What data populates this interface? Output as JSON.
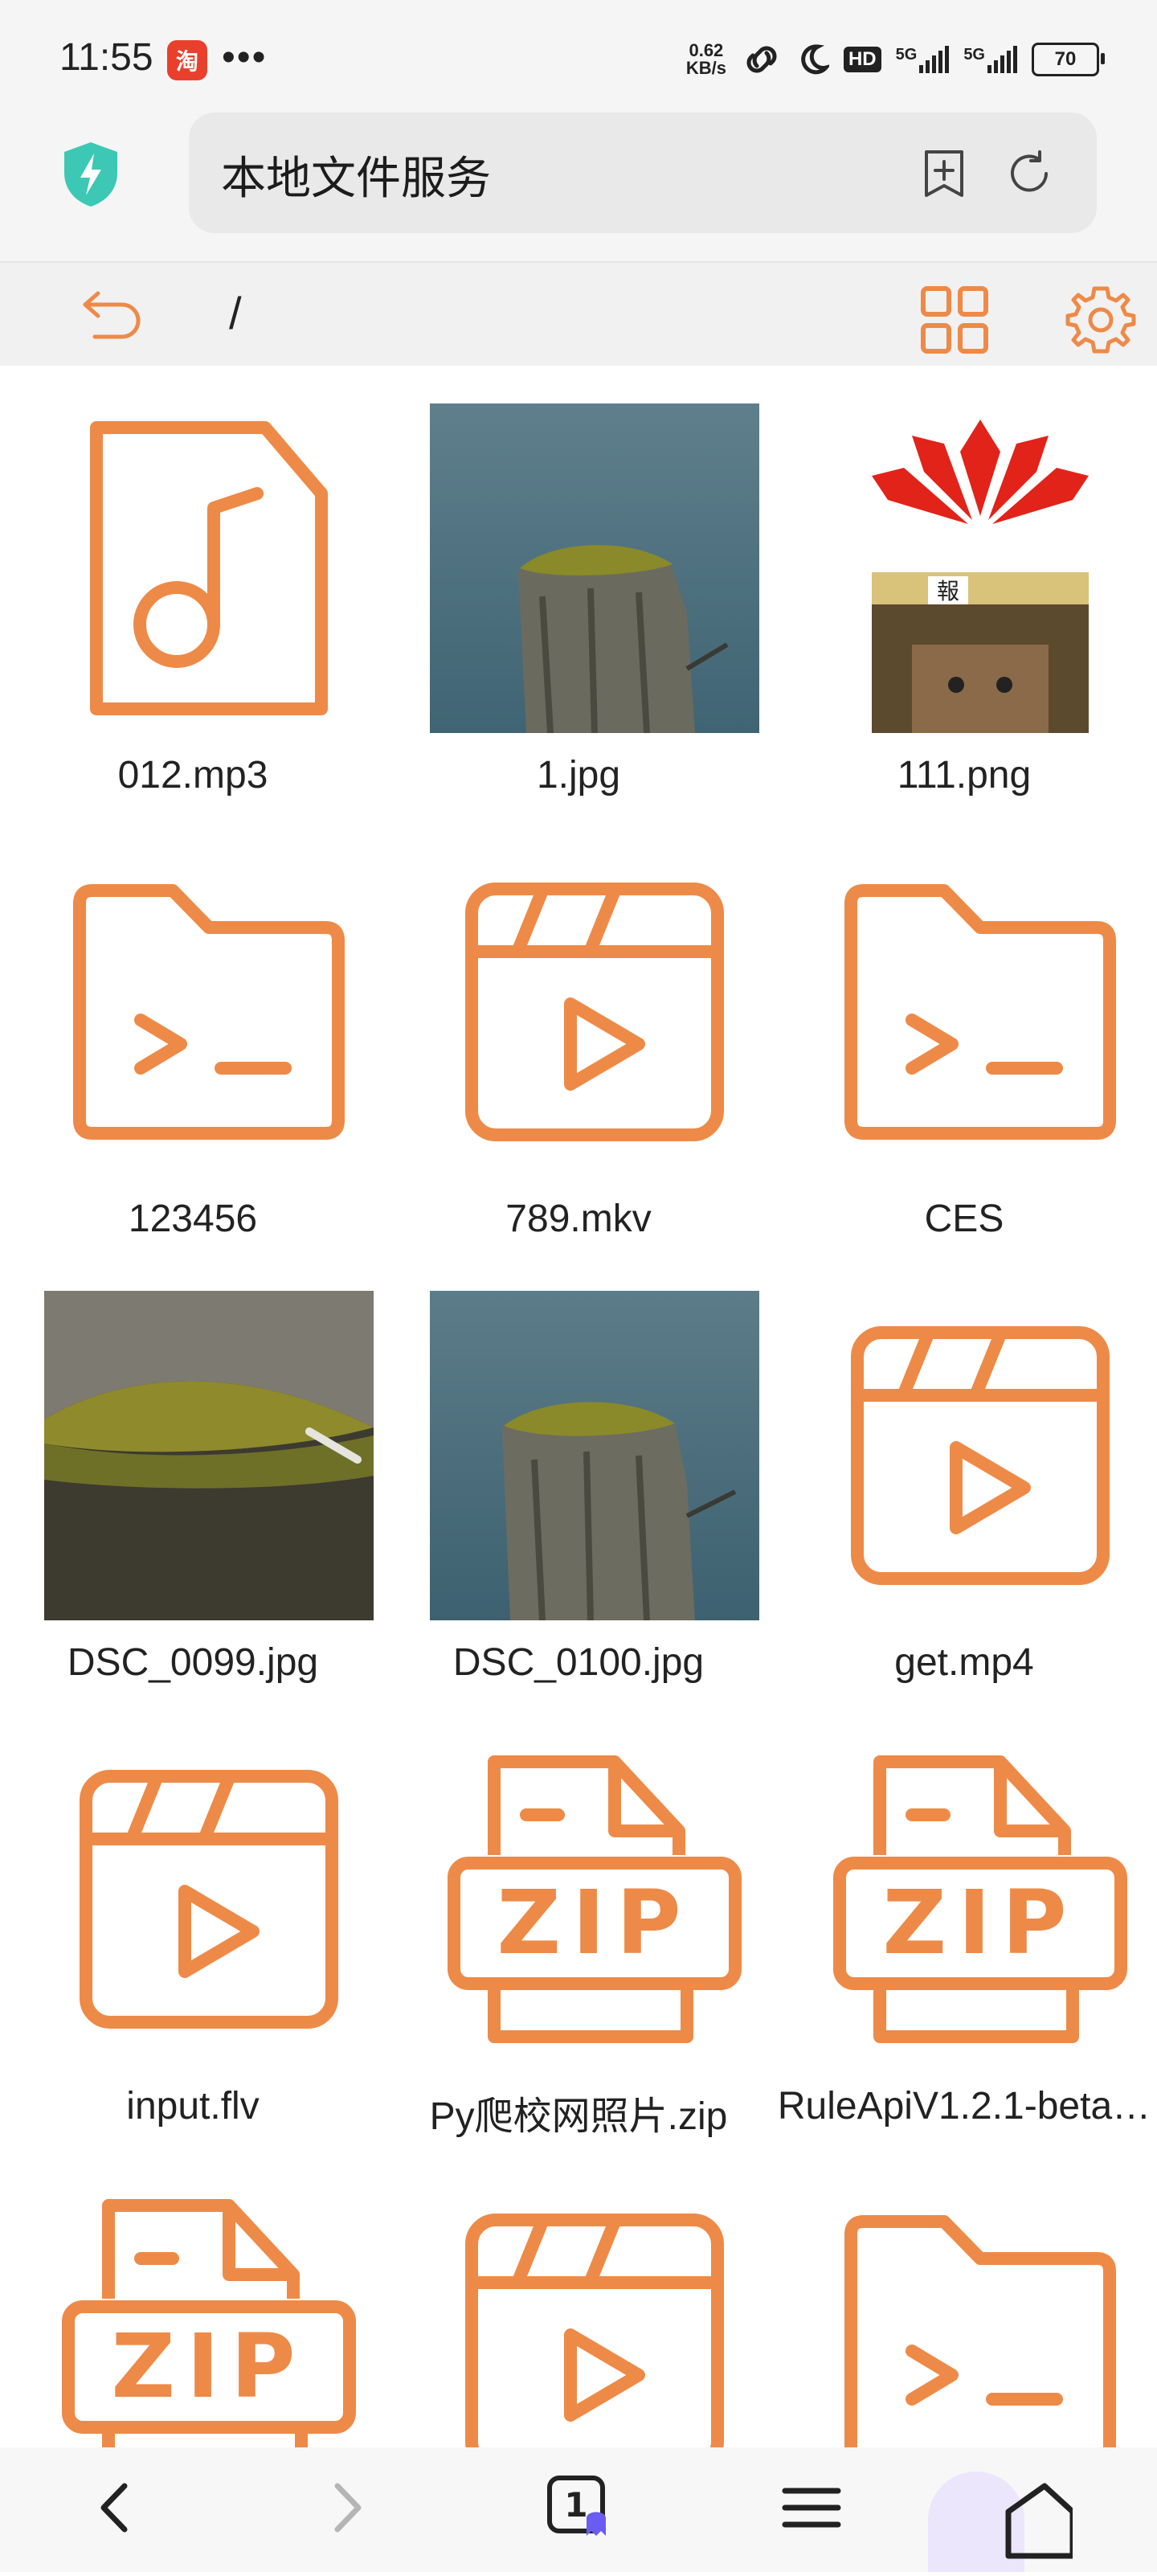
{
  "status_bar": {
    "time": "11:55",
    "app_badge": "淘",
    "more": "•••",
    "speed_top": "0.62",
    "speed_bottom": "KB/s",
    "hd": "HD",
    "net1": "5G",
    "net2": "5G",
    "battery": "70"
  },
  "address_bar": {
    "title": "本地文件服务"
  },
  "toolbar": {
    "path": "/"
  },
  "files": [
    {
      "name": "012.mp3",
      "icon": "audio-file-icon"
    },
    {
      "name": "1.jpg",
      "icon": "photo-stump"
    },
    {
      "name": "111.png",
      "icon": "photo-huawei"
    },
    {
      "name": "123456",
      "icon": "folder-terminal-icon"
    },
    {
      "name": "789.mkv",
      "icon": "video-clapper-icon"
    },
    {
      "name": "CES",
      "icon": "folder-terminal-icon"
    },
    {
      "name": "DSC_0099.jpg",
      "icon": "photo-moss"
    },
    {
      "name": "DSC_0100.jpg",
      "icon": "photo-stump"
    },
    {
      "name": "get.mp4",
      "icon": "video-clapper-icon"
    },
    {
      "name": "input.flv",
      "icon": "video-clapper-icon"
    },
    {
      "name": "Py爬校网照片.zip",
      "icon": "zip-file-icon"
    },
    {
      "name": "RuleApiV1.2.1-beta…",
      "icon": "zip-file-icon"
    },
    {
      "name": "",
      "icon": "zip-file-icon"
    },
    {
      "name": "",
      "icon": "video-clapper-icon"
    },
    {
      "name": "",
      "icon": "folder-terminal-icon"
    }
  ],
  "bottom_nav": {
    "tab_count": "1"
  },
  "colors": {
    "accent": "#ee8a47",
    "shield": "#3cc8b4"
  }
}
